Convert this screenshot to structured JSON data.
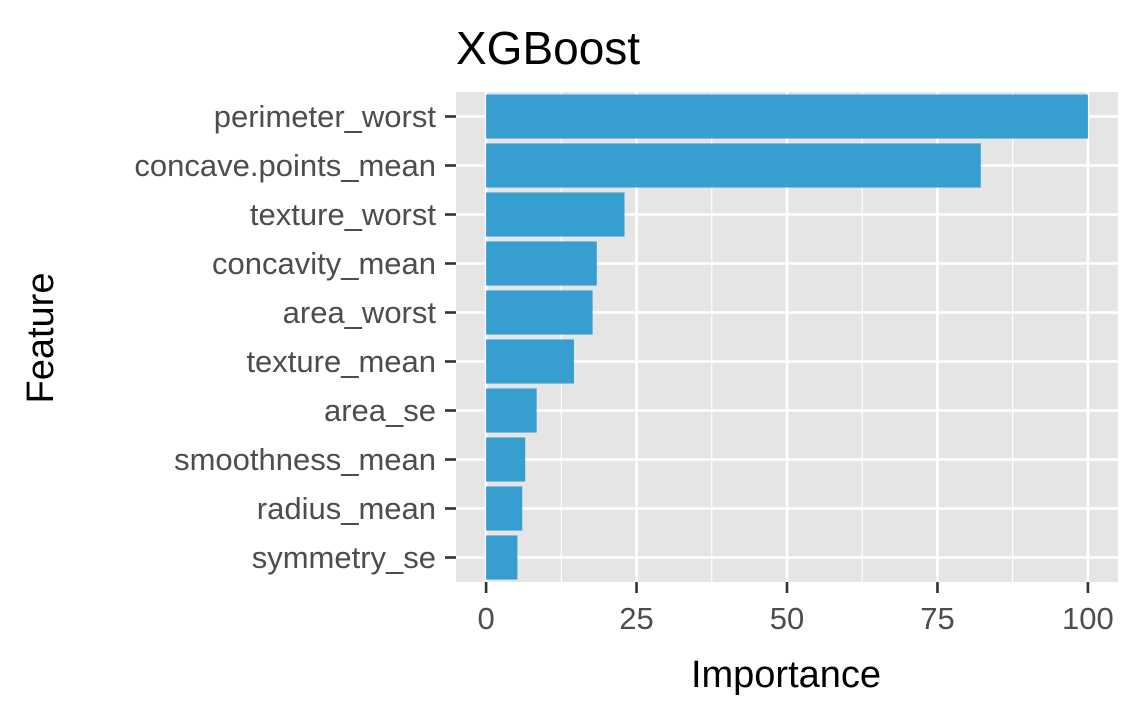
{
  "chart_data": {
    "type": "bar",
    "orientation": "horizontal",
    "title": "XGBoost",
    "xlabel": "Importance",
    "ylabel": "Feature",
    "categories": [
      "perimeter_worst",
      "concave.points_mean",
      "texture_worst",
      "concavity_mean",
      "area_worst",
      "texture_mean",
      "area_se",
      "smoothness_mean",
      "radius_mean",
      "symmetry_se"
    ],
    "values": [
      100,
      82.2,
      23,
      18.4,
      17.7,
      14.6,
      8.4,
      6.5,
      6,
      5.2
    ],
    "xlim": [
      -5,
      105
    ],
    "xticks": [
      0,
      25,
      50,
      75,
      100
    ],
    "xtick_labels": [
      "0",
      "25",
      "50",
      "75",
      "100"
    ],
    "grid": true,
    "bar_color": "#369FD0",
    "panel_color": "#E5E5E5",
    "grid_color": "#FFFFFF",
    "tick_label_color": "#4D4D4D"
  }
}
